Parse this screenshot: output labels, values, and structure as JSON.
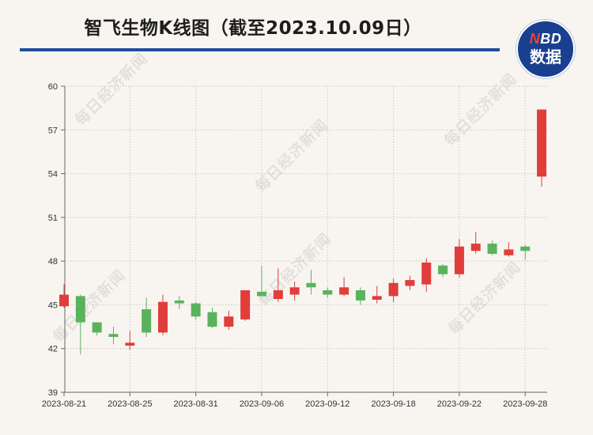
{
  "logo": {
    "brand": "NBD",
    "label": "数据"
  },
  "watermark": {
    "text": "每日经济新闻"
  },
  "colors": {
    "background": "#f8f5f0",
    "accent": "#1f4e9c",
    "logo_fill": "#1b3f8f",
    "up": "#e03d3b",
    "down": "#5ab35c"
  },
  "chart_data": {
    "type": "candlestick",
    "title": "智飞生物K线图（截至2023.10.09日）",
    "ylim": [
      39,
      60
    ],
    "yticks": [
      39,
      42,
      45,
      48,
      51,
      54,
      57,
      60
    ],
    "x_tick_labels": [
      "2023-08-21",
      "2023-08-25",
      "2023-08-31",
      "2023-09-06",
      "2023-09-12",
      "2023-09-18",
      "2023-09-22",
      "2023-09-28"
    ],
    "grid": true,
    "candles": [
      {
        "date": "2023-08-21",
        "open": 44.9,
        "high": 46.4,
        "low": 44.8,
        "close": 45.7
      },
      {
        "date": "2023-08-22",
        "open": 45.6,
        "high": 45.7,
        "low": 41.6,
        "close": 43.8
      },
      {
        "date": "2023-08-23",
        "open": 43.8,
        "high": 43.8,
        "low": 42.9,
        "close": 43.1
      },
      {
        "date": "2023-08-24",
        "open": 43.0,
        "high": 43.5,
        "low": 42.3,
        "close": 42.8
      },
      {
        "date": "2023-08-25",
        "open": 42.2,
        "high": 43.2,
        "low": 41.9,
        "close": 42.4
      },
      {
        "date": "2023-08-28",
        "open": 44.7,
        "high": 45.5,
        "low": 42.8,
        "close": 43.1
      },
      {
        "date": "2023-08-29",
        "open": 43.1,
        "high": 45.7,
        "low": 42.9,
        "close": 45.2
      },
      {
        "date": "2023-08-30",
        "open": 45.3,
        "high": 45.6,
        "low": 44.7,
        "close": 45.1
      },
      {
        "date": "2023-08-31",
        "open": 45.1,
        "high": 45.2,
        "low": 44.0,
        "close": 44.2
      },
      {
        "date": "2023-09-01",
        "open": 44.5,
        "high": 44.8,
        "low": 43.4,
        "close": 43.5
      },
      {
        "date": "2023-09-04",
        "open": 43.5,
        "high": 44.6,
        "low": 43.3,
        "close": 44.2
      },
      {
        "date": "2023-09-05",
        "open": 44.0,
        "high": 46.0,
        "low": 43.9,
        "close": 46.0
      },
      {
        "date": "2023-09-06",
        "open": 45.9,
        "high": 47.7,
        "low": 45.6,
        "close": 45.6
      },
      {
        "date": "2023-09-07",
        "open": 45.4,
        "high": 47.5,
        "low": 45.2,
        "close": 46.0
      },
      {
        "date": "2023-09-08",
        "open": 45.7,
        "high": 46.6,
        "low": 45.3,
        "close": 46.2
      },
      {
        "date": "2023-09-11",
        "open": 46.5,
        "high": 47.4,
        "low": 45.7,
        "close": 46.2
      },
      {
        "date": "2023-09-12",
        "open": 46.0,
        "high": 46.2,
        "low": 45.5,
        "close": 45.7
      },
      {
        "date": "2023-09-13",
        "open": 45.7,
        "high": 46.9,
        "low": 45.6,
        "close": 46.2
      },
      {
        "date": "2023-09-14",
        "open": 46.0,
        "high": 46.2,
        "low": 45.0,
        "close": 45.3
      },
      {
        "date": "2023-09-15",
        "open": 45.35,
        "high": 46.3,
        "low": 45.1,
        "close": 45.6
      },
      {
        "date": "2023-09-18",
        "open": 45.6,
        "high": 46.8,
        "low": 45.2,
        "close": 46.5
      },
      {
        "date": "2023-09-19",
        "open": 46.3,
        "high": 47.0,
        "low": 46.0,
        "close": 46.7
      },
      {
        "date": "2023-09-20",
        "open": 46.4,
        "high": 48.2,
        "low": 45.9,
        "close": 47.9
      },
      {
        "date": "2023-09-21",
        "open": 47.7,
        "high": 47.8,
        "low": 46.9,
        "close": 47.1
      },
      {
        "date": "2023-09-22",
        "open": 47.1,
        "high": 49.5,
        "low": 46.9,
        "close": 49.0
      },
      {
        "date": "2023-09-25",
        "open": 48.7,
        "high": 50.0,
        "low": 48.5,
        "close": 49.2
      },
      {
        "date": "2023-09-26",
        "open": 49.2,
        "high": 49.4,
        "low": 48.4,
        "close": 48.5
      },
      {
        "date": "2023-09-27",
        "open": 48.4,
        "high": 49.3,
        "low": 48.3,
        "close": 48.8
      },
      {
        "date": "2023-09-28",
        "open": 49.0,
        "high": 49.1,
        "low": 48.1,
        "close": 48.7
      },
      {
        "date": "2023-10-09",
        "open": 53.8,
        "high": 58.4,
        "low": 53.1,
        "close": 58.4
      }
    ]
  }
}
